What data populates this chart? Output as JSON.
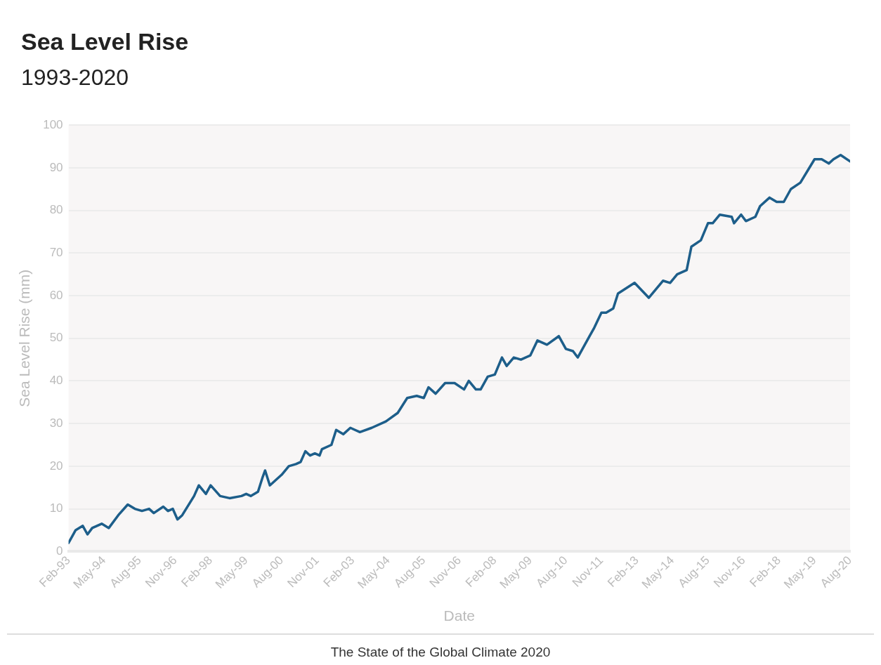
{
  "chart_data": {
    "type": "line",
    "title": "Sea Level Rise",
    "subtitle": "1993-2020",
    "xlabel": "Date",
    "ylabel": "Sea Level Rise (mm)",
    "annotations": [
      "The State of the Global Climate 2020"
    ],
    "x": [
      "1993-02",
      "1993-05",
      "1993-08",
      "1993-10",
      "1993-12",
      "1994-04",
      "1994-07",
      "1994-11",
      "1995-03",
      "1995-06",
      "1995-09",
      "1995-12",
      "1996-02",
      "1996-06",
      "1996-08",
      "1996-10",
      "1996-12",
      "1997-02",
      "1997-07",
      "1997-09",
      "1997-12",
      "1998-02",
      "1998-06",
      "1998-10",
      "1999-03",
      "1999-05",
      "1999-07",
      "1999-10",
      "1999-12",
      "2000-01",
      "2000-03",
      "2000-08",
      "2000-11",
      "2001-02",
      "2001-04",
      "2001-06",
      "2001-08",
      "2001-10",
      "2001-12",
      "2002-01",
      "2002-05",
      "2002-07",
      "2002-10",
      "2003-01",
      "2003-05",
      "2003-10",
      "2004-04",
      "2004-09",
      "2005-01",
      "2005-05",
      "2005-08",
      "2005-10",
      "2006-01",
      "2006-05",
      "2006-09",
      "2007-01",
      "2007-03",
      "2007-06",
      "2007-08",
      "2007-11",
      "2008-02",
      "2008-05",
      "2008-07",
      "2008-10",
      "2009-01",
      "2009-05",
      "2009-08",
      "2009-12",
      "2010-05",
      "2010-08",
      "2010-11",
      "2011-01",
      "2011-06",
      "2011-08",
      "2011-11",
      "2012-01",
      "2012-04",
      "2012-06",
      "2013-01",
      "2013-07",
      "2014-01",
      "2014-04",
      "2014-07",
      "2014-11",
      "2015-01",
      "2015-05",
      "2015-08",
      "2015-10",
      "2016-01",
      "2016-06",
      "2016-07",
      "2016-10",
      "2016-12",
      "2017-04",
      "2017-06",
      "2017-10",
      "2018-01",
      "2018-04",
      "2018-07",
      "2018-11",
      "2019-05",
      "2019-08",
      "2019-11",
      "2020-01",
      "2020-04",
      "2020-08"
    ],
    "series": [
      {
        "color": "#1d5e8a",
        "values": [
          2,
          5,
          6,
          4,
          5.5,
          6.5,
          5.5,
          8.5,
          11,
          10,
          9.5,
          10,
          9,
          10.5,
          9.5,
          10,
          7.5,
          8.5,
          13,
          15.5,
          13.5,
          15.5,
          13,
          12.5,
          13,
          13.5,
          13,
          14,
          17.5,
          19,
          15.5,
          18,
          20,
          20.5,
          21,
          23.5,
          22.5,
          23,
          22.5,
          24,
          25,
          28.5,
          27.5,
          29,
          28,
          29,
          30.5,
          32.5,
          36,
          36.5,
          36,
          38.5,
          37,
          39.5,
          39.5,
          38,
          40,
          38,
          38,
          41,
          41.5,
          45.5,
          43.5,
          45.5,
          45,
          46,
          49.5,
          48.5,
          50.5,
          47.5,
          47,
          45.5,
          50.5,
          52.5,
          56,
          56,
          57,
          60.5,
          63,
          59.5,
          63.5,
          63,
          65,
          66,
          71.5,
          73,
          77,
          77,
          79,
          78.5,
          77,
          79,
          77.5,
          78.5,
          81,
          83,
          82,
          82,
          85,
          86.5,
          92,
          92,
          91,
          92,
          93,
          91.5
        ]
      }
    ],
    "xlim": [
      "1993-02",
      "2020-08"
    ],
    "xticks": [
      {
        "value": "1993-02",
        "label": "Feb-93"
      },
      {
        "value": "1994-05",
        "label": "May-94"
      },
      {
        "value": "1995-08",
        "label": "Aug-95"
      },
      {
        "value": "1996-11",
        "label": "Nov-96"
      },
      {
        "value": "1998-02",
        "label": "Feb-98"
      },
      {
        "value": "1999-05",
        "label": "May-99"
      },
      {
        "value": "2000-08",
        "label": "Aug-00"
      },
      {
        "value": "2001-11",
        "label": "Nov-01"
      },
      {
        "value": "2003-02",
        "label": "Feb-03"
      },
      {
        "value": "2004-05",
        "label": "May-04"
      },
      {
        "value": "2005-08",
        "label": "Aug-05"
      },
      {
        "value": "2006-11",
        "label": "Nov-06"
      },
      {
        "value": "2008-02",
        "label": "Feb-08"
      },
      {
        "value": "2009-05",
        "label": "May-09"
      },
      {
        "value": "2010-08",
        "label": "Aug-10"
      },
      {
        "value": "2011-11",
        "label": "Nov-11"
      },
      {
        "value": "2013-02",
        "label": "Feb-13"
      },
      {
        "value": "2014-05",
        "label": "May-14"
      },
      {
        "value": "2015-08",
        "label": "Aug-15"
      },
      {
        "value": "2016-11",
        "label": "Nov-16"
      },
      {
        "value": "2018-02",
        "label": "Feb-18"
      },
      {
        "value": "2019-05",
        "label": "May-19"
      },
      {
        "value": "2020-08",
        "label": "Aug-20"
      }
    ],
    "ylim": [
      0,
      100
    ],
    "yticks": [
      0,
      10,
      20,
      30,
      40,
      50,
      60,
      70,
      80,
      90,
      100
    ],
    "grid": "y",
    "legend": false
  }
}
